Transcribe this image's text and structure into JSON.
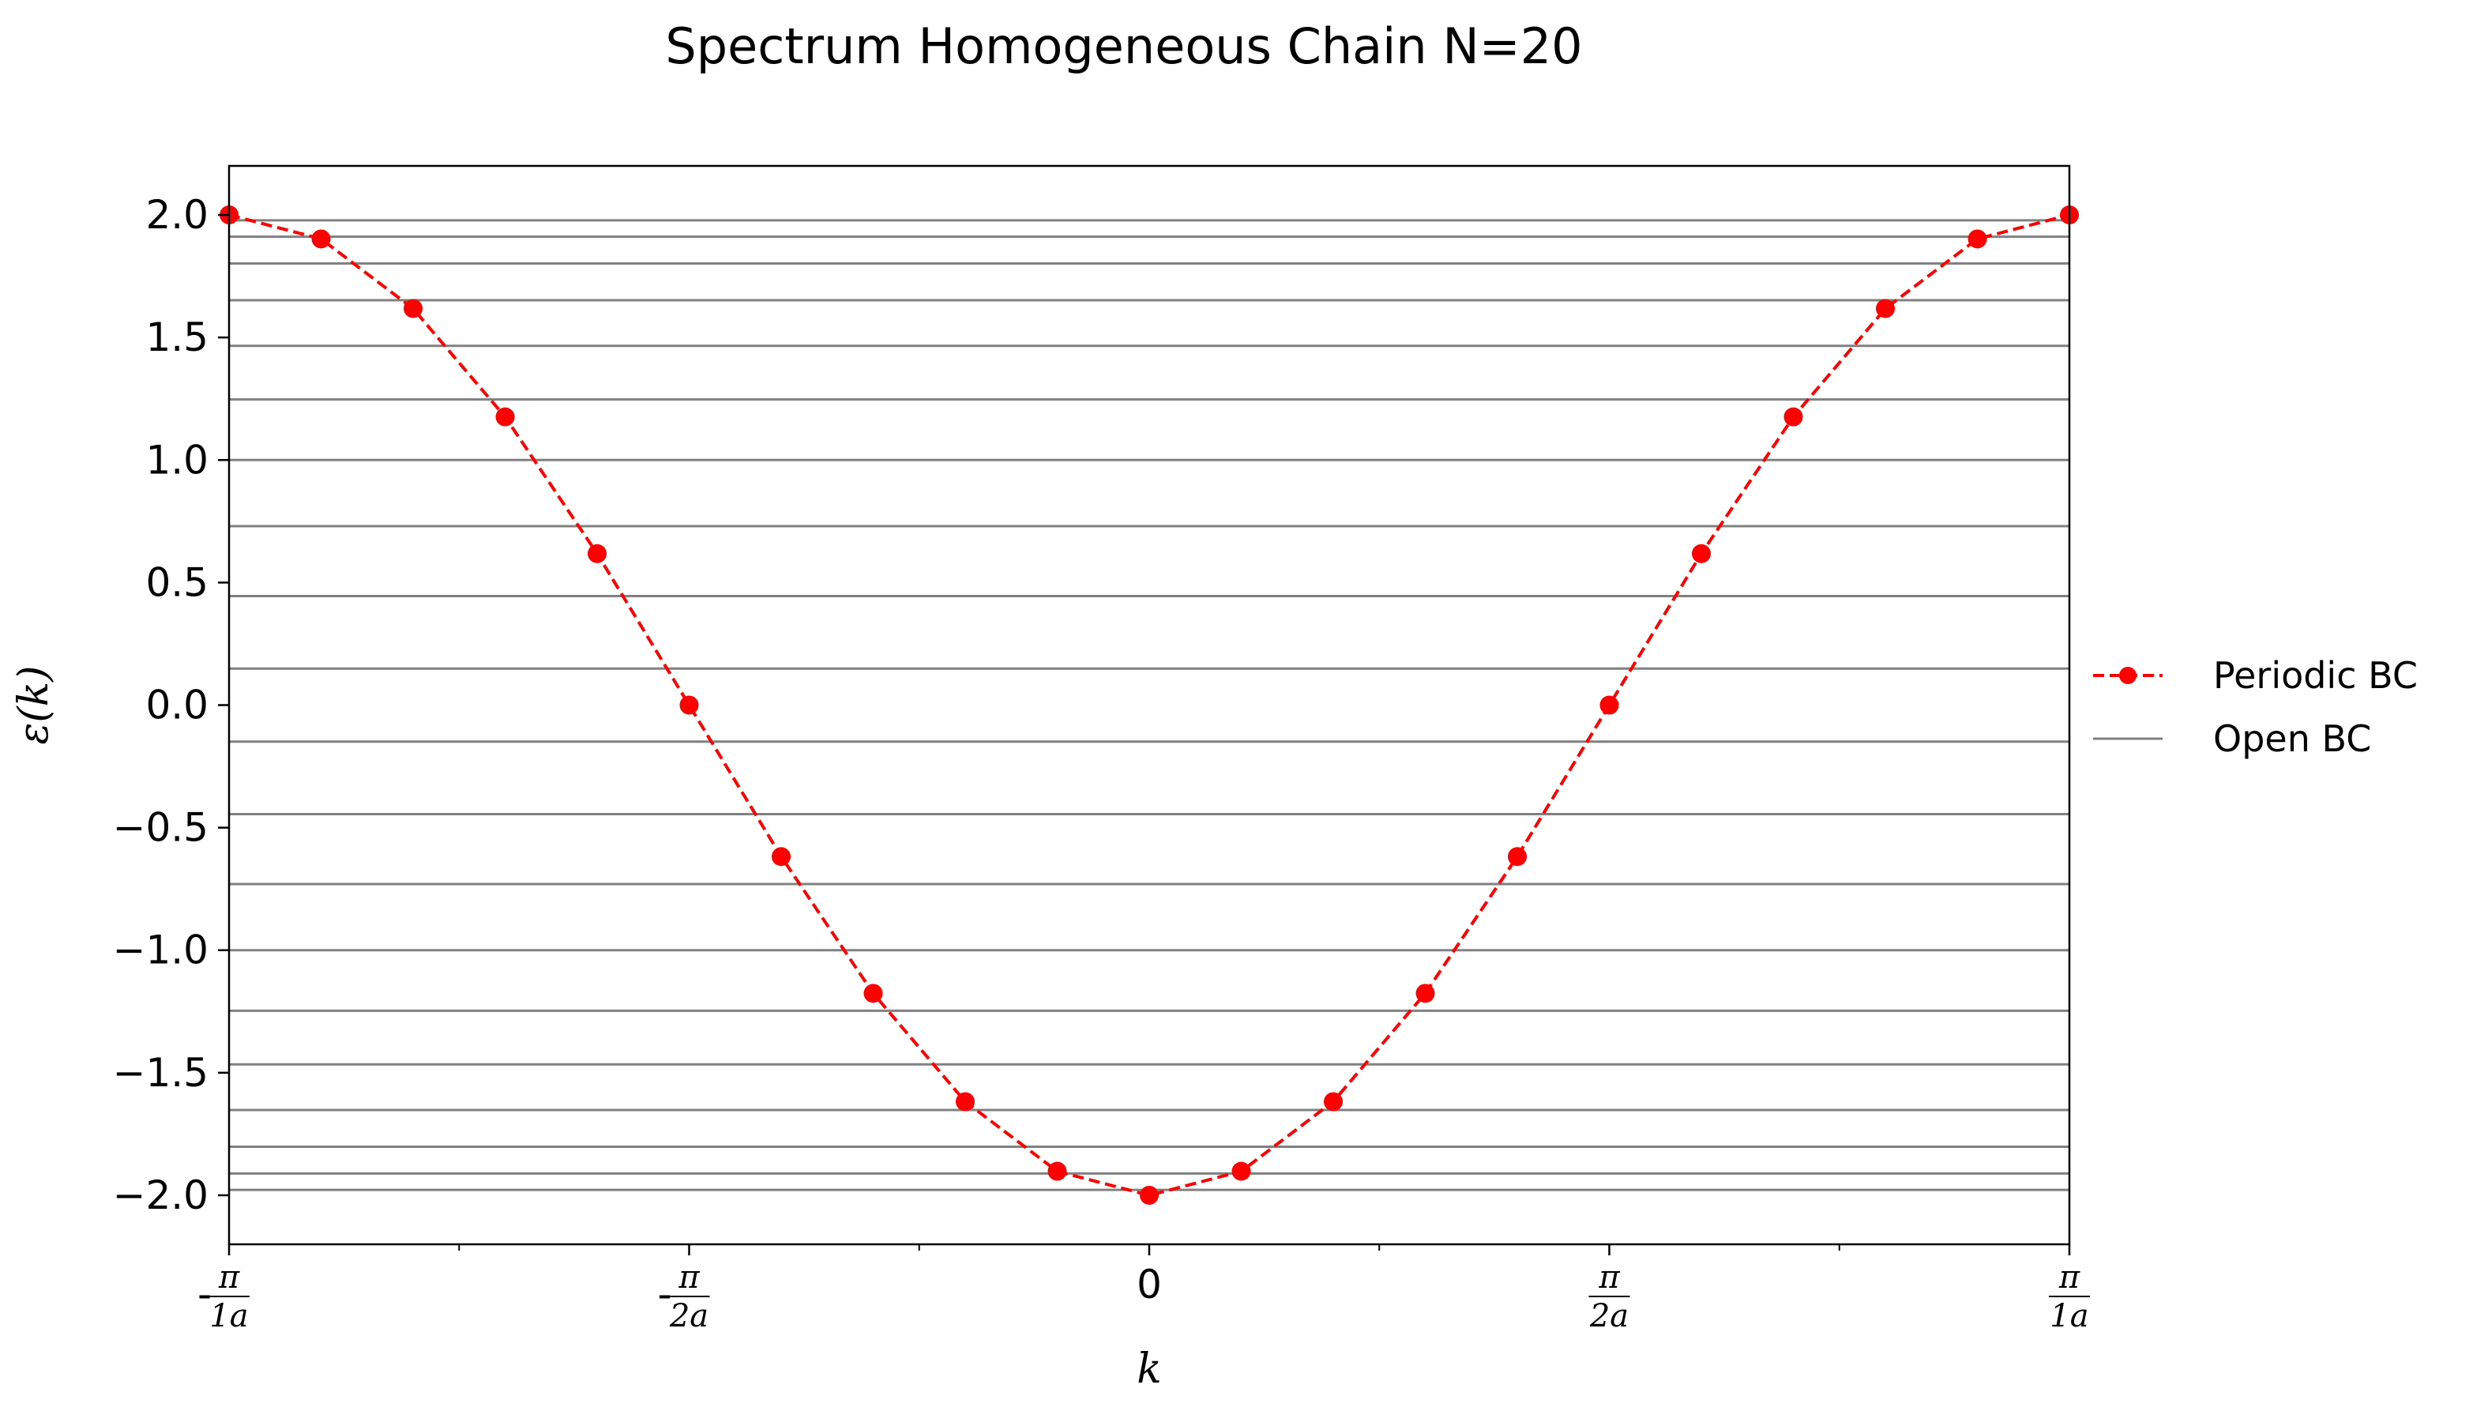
{
  "chart_data": {
    "type": "line",
    "title": "Spectrum Homogeneous Chain N=20",
    "xlabel": "k",
    "ylabel": "ε(k)",
    "xlim": [
      -3.14159,
      3.14159
    ],
    "ylim": [
      -2.2,
      2.2
    ],
    "x_ticks": [
      {
        "value": -3.14159,
        "sign": "-",
        "num": "π",
        "den": "1a"
      },
      {
        "value": -1.570796,
        "sign": "-",
        "num": "π",
        "den": "2a"
      },
      {
        "value": 0,
        "plain": "0"
      },
      {
        "value": 1.570796,
        "sign": "",
        "num": "π",
        "den": "2a"
      },
      {
        "value": 3.14159,
        "sign": "",
        "num": "π",
        "den": "1a"
      }
    ],
    "x_minor_ticks": [
      -2.356194,
      -0.785398,
      0.785398,
      2.356194
    ],
    "y_ticks": [
      {
        "value": 2.0,
        "label": "2.0"
      },
      {
        "value": 1.5,
        "label": "1.5"
      },
      {
        "value": 1.0,
        "label": "1.0"
      },
      {
        "value": 0.5,
        "label": "0.5"
      },
      {
        "value": 0.0,
        "label": "0.0"
      },
      {
        "value": -0.5,
        "label": "−0.5"
      },
      {
        "value": -1.0,
        "label": "−1.0"
      },
      {
        "value": -1.5,
        "label": "−1.5"
      },
      {
        "value": -2.0,
        "label": "−2.0"
      }
    ],
    "series": [
      {
        "name": "Periodic BC",
        "style": "dashed-line-with-markers",
        "color": "#ff0000",
        "x": [
          -3.14159,
          -2.827431,
          -2.513272,
          -2.199114,
          -1.884955,
          -1.570796,
          -1.256637,
          -0.942478,
          -0.628319,
          -0.314159,
          0.0,
          0.314159,
          0.628319,
          0.942478,
          1.256637,
          1.570796,
          1.884955,
          2.199114,
          2.513272,
          2.827431,
          3.14159
        ],
        "y": [
          2.0,
          1.902,
          1.618,
          1.176,
          0.618,
          0.0,
          -0.618,
          -1.176,
          -1.618,
          -1.902,
          -2.0,
          -1.902,
          -1.618,
          -1.176,
          -0.618,
          0.0,
          0.618,
          1.176,
          1.618,
          1.902,
          2.0
        ]
      },
      {
        "name": "Open BC",
        "style": "horizontal-lines",
        "color": "#808080",
        "y": [
          1.978,
          1.911,
          1.802,
          1.652,
          1.466,
          1.247,
          1.0,
          0.73,
          0.445,
          0.149,
          -0.149,
          -0.445,
          -0.73,
          -1.0,
          -1.247,
          -1.466,
          -1.652,
          -1.802,
          -1.911,
          -1.978
        ]
      }
    ],
    "grid": false,
    "legend_position": "outside-right"
  }
}
